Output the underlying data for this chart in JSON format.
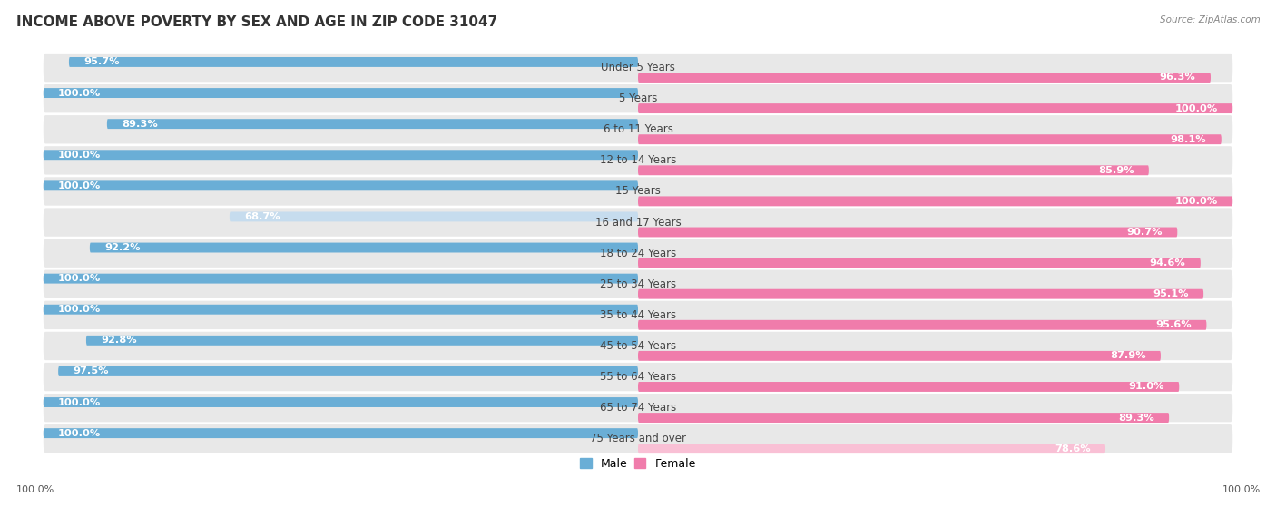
{
  "title": "INCOME ABOVE POVERTY BY SEX AND AGE IN ZIP CODE 31047",
  "source": "Source: ZipAtlas.com",
  "categories": [
    "Under 5 Years",
    "5 Years",
    "6 to 11 Years",
    "12 to 14 Years",
    "15 Years",
    "16 and 17 Years",
    "18 to 24 Years",
    "25 to 34 Years",
    "35 to 44 Years",
    "45 to 54 Years",
    "55 to 64 Years",
    "65 to 74 Years",
    "75 Years and over"
  ],
  "male_values": [
    95.7,
    100.0,
    89.3,
    100.0,
    100.0,
    68.7,
    92.2,
    100.0,
    100.0,
    92.8,
    97.5,
    100.0,
    100.0
  ],
  "female_values": [
    96.3,
    100.0,
    98.1,
    85.9,
    100.0,
    90.7,
    94.6,
    95.1,
    95.6,
    87.9,
    91.0,
    89.3,
    78.6
  ],
  "male_color": "#6aaed6",
  "female_color": "#f07cab",
  "male_light_color": "#c6dcee",
  "female_light_color": "#f9c0d5",
  "row_bg_color": "#e8e8e8",
  "background_color": "#ffffff",
  "title_fontsize": 11,
  "label_fontsize": 8.5,
  "value_fontsize": 8.2,
  "legend_male": "Male",
  "legend_female": "Female"
}
